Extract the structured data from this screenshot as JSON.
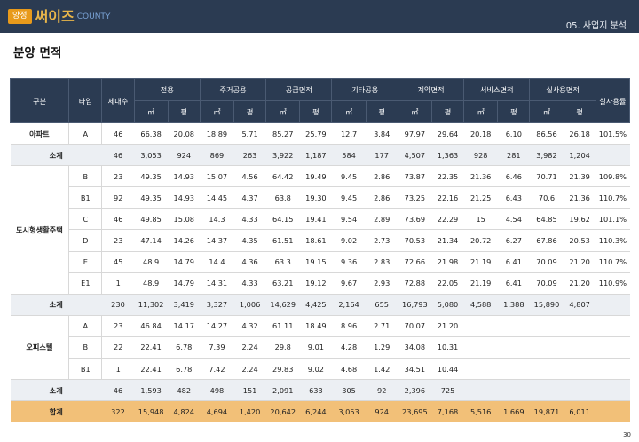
{
  "header": {
    "badge": "양정",
    "logo": "써이즈",
    "logo_sub": "COUNTY",
    "section": "05. 사업지 분석"
  },
  "page_title": "분양 면적",
  "table": {
    "head": {
      "col_gubun": "구분",
      "col_type": "타입",
      "col_units": "세대수",
      "groups": [
        "전용",
        "주거공용",
        "공급면적",
        "기타공용",
        "계약면적",
        "서비스면적",
        "실사용면적"
      ],
      "unit_m2": "㎡",
      "unit_py": "평",
      "col_ratio": "실사용률"
    },
    "rows": [
      {
        "kind": "data",
        "group": "아파트",
        "type": "A",
        "units": "46",
        "v": [
          "66.38",
          "20.08",
          "18.89",
          "5.71",
          "85.27",
          "25.79",
          "12.7",
          "3.84",
          "97.97",
          "29.64",
          "20.18",
          "6.10",
          "86.56",
          "26.18"
        ],
        "ratio": "101.5%"
      },
      {
        "kind": "sub",
        "label": "소계",
        "units": "46",
        "v": [
          "3,053",
          "924",
          "869",
          "263",
          "3,922",
          "1,187",
          "584",
          "177",
          "4,507",
          "1,363",
          "928",
          "281",
          "3,982",
          "1,204"
        ],
        "ratio": ""
      },
      {
        "kind": "data",
        "group": "",
        "type": "B",
        "units": "23",
        "v": [
          "49.35",
          "14.93",
          "15.07",
          "4.56",
          "64.42",
          "19.49",
          "9.45",
          "2.86",
          "73.87",
          "22.35",
          "21.36",
          "6.46",
          "70.71",
          "21.39"
        ],
        "ratio": "109.8%"
      },
      {
        "kind": "data",
        "group": "",
        "type": "B1",
        "units": "92",
        "v": [
          "49.35",
          "14.93",
          "14.45",
          "4.37",
          "63.8",
          "19.30",
          "9.45",
          "2.86",
          "73.25",
          "22.16",
          "21.25",
          "6.43",
          "70.6",
          "21.36"
        ],
        "ratio": "110.7%"
      },
      {
        "kind": "data",
        "group": "도시형생활주택",
        "type": "C",
        "units": "46",
        "v": [
          "49.85",
          "15.08",
          "14.3",
          "4.33",
          "64.15",
          "19.41",
          "9.54",
          "2.89",
          "73.69",
          "22.29",
          "15",
          "4.54",
          "64.85",
          "19.62"
        ],
        "ratio": "101.1%"
      },
      {
        "kind": "data",
        "group": "",
        "type": "D",
        "units": "23",
        "v": [
          "47.14",
          "14.26",
          "14.37",
          "4.35",
          "61.51",
          "18.61",
          "9.02",
          "2.73",
          "70.53",
          "21.34",
          "20.72",
          "6.27",
          "67.86",
          "20.53"
        ],
        "ratio": "110.3%"
      },
      {
        "kind": "data",
        "group": "",
        "type": "E",
        "units": "45",
        "v": [
          "48.9",
          "14.79",
          "14.4",
          "4.36",
          "63.3",
          "19.15",
          "9.36",
          "2.83",
          "72.66",
          "21.98",
          "21.19",
          "6.41",
          "70.09",
          "21.20"
        ],
        "ratio": "110.7%"
      },
      {
        "kind": "data",
        "group": "",
        "type": "E1",
        "units": "1",
        "v": [
          "48.9",
          "14.79",
          "14.31",
          "4.33",
          "63.21",
          "19.12",
          "9.67",
          "2.93",
          "72.88",
          "22.05",
          "21.19",
          "6.41",
          "70.09",
          "21.20"
        ],
        "ratio": "110.9%"
      },
      {
        "kind": "sub",
        "label": "소계",
        "units": "230",
        "v": [
          "11,302",
          "3,419",
          "3,327",
          "1,006",
          "14,629",
          "4,425",
          "2,164",
          "655",
          "16,793",
          "5,080",
          "4,588",
          "1,388",
          "15,890",
          "4,807"
        ],
        "ratio": ""
      },
      {
        "kind": "data",
        "group": "",
        "type": "A",
        "units": "23",
        "v": [
          "46.84",
          "14.17",
          "14.27",
          "4.32",
          "61.11",
          "18.49",
          "8.96",
          "2.71",
          "70.07",
          "21.20",
          "",
          "",
          "",
          ""
        ],
        "ratio": ""
      },
      {
        "kind": "data",
        "group": "오피스텔",
        "type": "B",
        "units": "22",
        "v": [
          "22.41",
          "6.78",
          "7.39",
          "2.24",
          "29.8",
          "9.01",
          "4.28",
          "1.29",
          "34.08",
          "10.31",
          "",
          "",
          "",
          ""
        ],
        "ratio": ""
      },
      {
        "kind": "data",
        "group": "",
        "type": "B1",
        "units": "1",
        "v": [
          "22.41",
          "6.78",
          "7.42",
          "2.24",
          "29.83",
          "9.02",
          "4.68",
          "1.42",
          "34.51",
          "10.44",
          "",
          "",
          "",
          ""
        ],
        "ratio": ""
      },
      {
        "kind": "sub",
        "label": "소계",
        "units": "46",
        "v": [
          "1,593",
          "482",
          "498",
          "151",
          "2,091",
          "633",
          "305",
          "92",
          "2,396",
          "725",
          "",
          "",
          "",
          ""
        ],
        "ratio": ""
      },
      {
        "kind": "total",
        "label": "합계",
        "units": "322",
        "v": [
          "15,948",
          "4,824",
          "4,694",
          "1,420",
          "20,642",
          "6,244",
          "3,053",
          "924",
          "23,695",
          "7,168",
          "5,516",
          "1,669",
          "19,871",
          "6,011"
        ],
        "ratio": ""
      }
    ]
  },
  "page_number": "30"
}
